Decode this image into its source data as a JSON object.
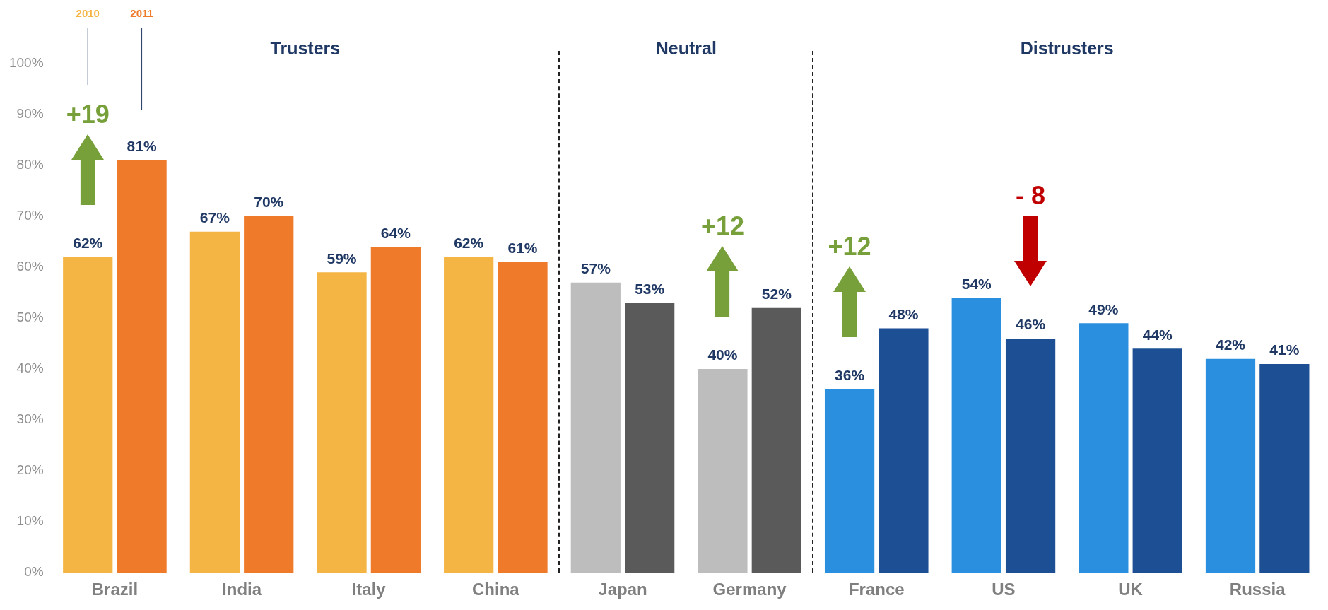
{
  "chart_data": {
    "type": "bar",
    "categories": [
      "Brazil",
      "India",
      "Italy",
      "China",
      "Japan",
      "Germany",
      "France",
      "US",
      "UK",
      "Russia"
    ],
    "series": [
      {
        "name": "2010",
        "colors": [
          "#f5b544",
          "#f5b544",
          "#f5b544",
          "#f5b544",
          "#bdbdbd",
          "#bdbdbd",
          "#2b8fe0",
          "#2b8fe0",
          "#2b8fe0",
          "#2b8fe0"
        ],
        "values": [
          62,
          67,
          59,
          62,
          57,
          40,
          36,
          54,
          49,
          42
        ],
        "value_labels": [
          "62%",
          "67%",
          "59%",
          "62%",
          "57%",
          "40%",
          "36%",
          "54%",
          "49%",
          "42%"
        ]
      },
      {
        "name": "2011",
        "colors": [
          "#ef7a2a",
          "#ef7a2a",
          "#ef7a2a",
          "#ef7a2a",
          "#5a5a5a",
          "#5a5a5a",
          "#1c4f94",
          "#1c4f94",
          "#1c4f94",
          "#1c4f94"
        ],
        "values": [
          81,
          70,
          64,
          61,
          53,
          52,
          48,
          46,
          44,
          41
        ],
        "value_labels": [
          "81%",
          "70%",
          "64%",
          "61%",
          "53%",
          "52%",
          "48%",
          "46%",
          "44%",
          "41%"
        ]
      }
    ],
    "ylim": [
      0,
      100
    ],
    "yticks": [
      {
        "value": 0,
        "label": "0%"
      },
      {
        "value": 10,
        "label": "10%"
      },
      {
        "value": 20,
        "label": "20%"
      },
      {
        "value": 30,
        "label": "30%"
      },
      {
        "value": 40,
        "label": "40%"
      },
      {
        "value": 50,
        "label": "50%"
      },
      {
        "value": 60,
        "label": "60%"
      },
      {
        "value": 70,
        "label": "70%"
      },
      {
        "value": 80,
        "label": "80%"
      },
      {
        "value": 90,
        "label": "90%"
      },
      {
        "value": 100,
        "label": "100%"
      }
    ],
    "grid": false,
    "legend": false,
    "annotations": [
      "Trusters",
      "Neutral",
      "Distrusters",
      "+19",
      "+12",
      "+12",
      "- 8"
    ]
  }
}
